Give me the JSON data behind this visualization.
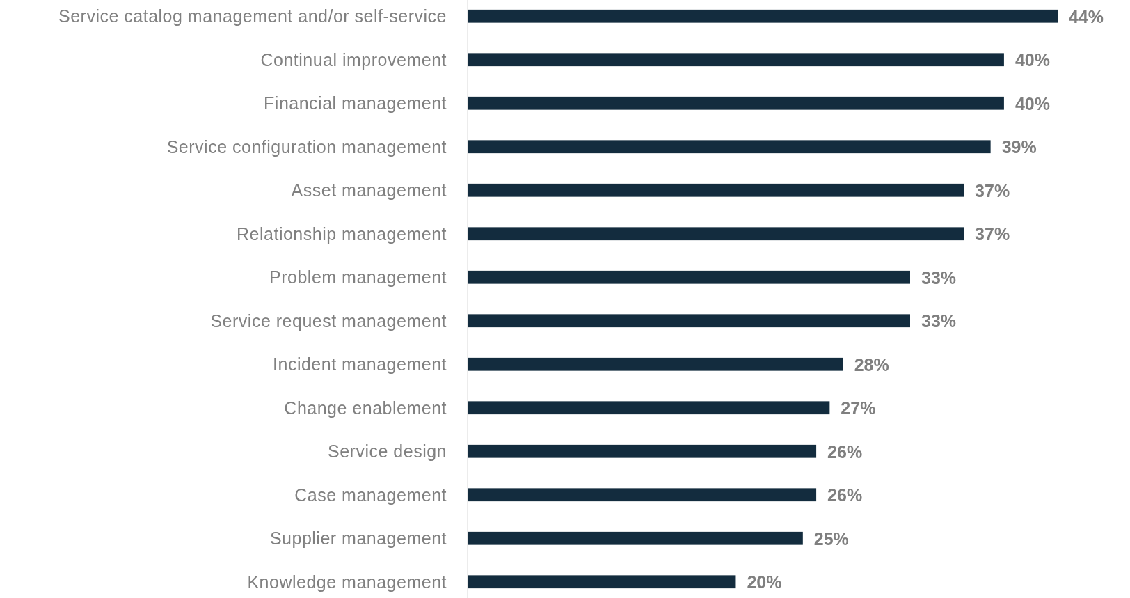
{
  "chart_data": {
    "type": "bar",
    "orientation": "horizontal",
    "categories": [
      "Service catalog management and/or self-service",
      "Continual improvement",
      "Financial management",
      "Service configuration management",
      "Asset management",
      "Relationship management",
      "Problem management",
      "Service request management",
      "Incident management",
      "Change enablement",
      "Service design",
      "Case management",
      "Supplier management",
      "Knowledge management"
    ],
    "values": [
      44,
      40,
      40,
      39,
      37,
      37,
      33,
      33,
      28,
      27,
      26,
      26,
      25,
      20
    ],
    "value_labels": [
      "44%",
      "40%",
      "40%",
      "39%",
      "37%",
      "37%",
      "33%",
      "33%",
      "28%",
      "27%",
      "26%",
      "26%",
      "25%",
      "20%"
    ],
    "color": "#132c3e"
  }
}
